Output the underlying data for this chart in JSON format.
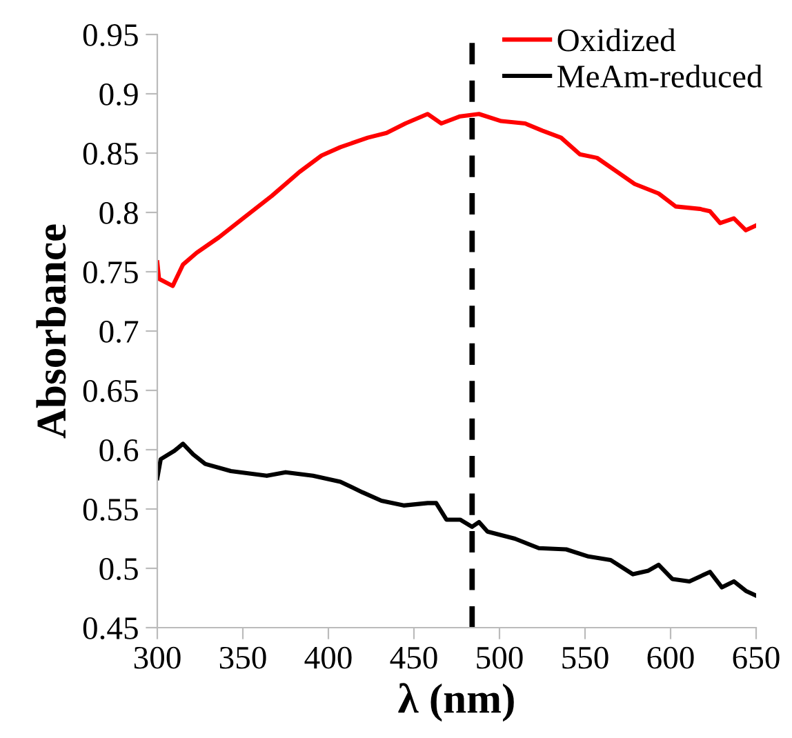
{
  "chart_data": {
    "type": "line",
    "xlabel": "λ (nm)",
    "ylabel": "Absorbance",
    "xlim": [
      300,
      650
    ],
    "xticks": [
      300,
      350,
      400,
      450,
      500,
      550,
      600,
      650
    ],
    "ylim": [
      0.45,
      0.95
    ],
    "yticks": [
      0.45,
      {
        "value": 0.5,
        "label": "0.5"
      },
      0.55,
      {
        "value": 0.6,
        "label": "0.6"
      },
      0.65,
      {
        "value": 0.7,
        "label": "0.7"
      },
      0.75,
      {
        "value": 0.8,
        "label": "0.8"
      },
      0.85,
      {
        "value": 0.9,
        "label": "0.9"
      },
      0.95
    ],
    "grid": false,
    "legend": "top right",
    "marker": "none",
    "line_style": "solid",
    "series": [
      {
        "name": "Oxidized",
        "color": "#ff0000",
        "x": [
          300,
          301,
          309,
          315,
          323,
          336,
          351,
          367,
          383,
          396,
          407,
          423,
          434,
          445,
          458,
          466,
          477,
          488,
          501,
          515,
          525,
          536,
          547,
          557,
          569,
          579,
          593,
          603,
          617,
          623,
          629,
          637,
          644,
          650
        ],
        "values": [
          0.758,
          0.744,
          0.738,
          0.756,
          0.766,
          0.779,
          0.796,
          0.814,
          0.834,
          0.848,
          0.855,
          0.863,
          0.867,
          0.875,
          0.883,
          0.875,
          0.881,
          0.883,
          0.877,
          0.875,
          0.869,
          0.863,
          0.849,
          0.846,
          0.834,
          0.824,
          0.816,
          0.805,
          0.803,
          0.801,
          0.791,
          0.795,
          0.785,
          0.789
        ]
      },
      {
        "name": "MeAm-reduced",
        "color": "#000000",
        "x": [
          300,
          302,
          310,
          315,
          321,
          328,
          343,
          364,
          375,
          391,
          407,
          420,
          431,
          444,
          458,
          463,
          469,
          477,
          484,
          488,
          493,
          509,
          523,
          539,
          552,
          565,
          578,
          587,
          593,
          601,
          611,
          623,
          630,
          637,
          644,
          650
        ],
        "values": [
          0.576,
          0.592,
          0.599,
          0.605,
          0.596,
          0.588,
          0.582,
          0.578,
          0.581,
          0.578,
          0.573,
          0.564,
          0.557,
          0.553,
          0.555,
          0.555,
          0.541,
          0.541,
          0.535,
          0.539,
          0.531,
          0.525,
          0.517,
          0.516,
          0.51,
          0.507,
          0.495,
          0.498,
          0.503,
          0.491,
          0.489,
          0.497,
          0.484,
          0.489,
          0.481,
          0.477
        ]
      }
    ],
    "ref_lines": [
      {
        "axis": "x",
        "value": 484,
        "color": "#000000",
        "line_style": "dashed"
      }
    ]
  }
}
